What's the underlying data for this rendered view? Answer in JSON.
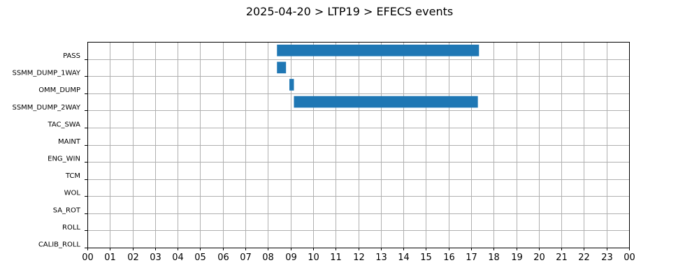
{
  "chart_data": {
    "type": "bar",
    "orientation": "horizontal-timeline",
    "title": "2025-04-20 > LTP19 > EFECS events",
    "xlabel": "",
    "ylabel": "",
    "x_range_hours": [
      0,
      24
    ],
    "x_tick_labels": [
      "00",
      "01",
      "02",
      "03",
      "04",
      "05",
      "06",
      "07",
      "08",
      "09",
      "10",
      "11",
      "12",
      "13",
      "14",
      "15",
      "16",
      "17",
      "18",
      "19",
      "20",
      "21",
      "22",
      "23",
      "00"
    ],
    "categories": [
      "PASS",
      "SSMM_DUMP_1WAY",
      "OMM_DUMP",
      "SSMM_DUMP_2WAY",
      "TAC_SWA",
      "MAINT",
      "ENG_WIN",
      "TCM",
      "WOL",
      "SA_ROT",
      "ROLL",
      "CALIB_ROLL"
    ],
    "events": [
      {
        "category": "PASS",
        "start_hour": 8.4,
        "end_hour": 17.35
      },
      {
        "category": "SSMM_DUMP_1WAY",
        "start_hour": 8.4,
        "end_hour": 8.8
      },
      {
        "category": "OMM_DUMP",
        "start_hour": 8.95,
        "end_hour": 9.15
      },
      {
        "category": "SSMM_DUMP_2WAY",
        "start_hour": 9.15,
        "end_hour": 17.3
      }
    ],
    "grid": true,
    "bar_color": "#1f77b4"
  }
}
